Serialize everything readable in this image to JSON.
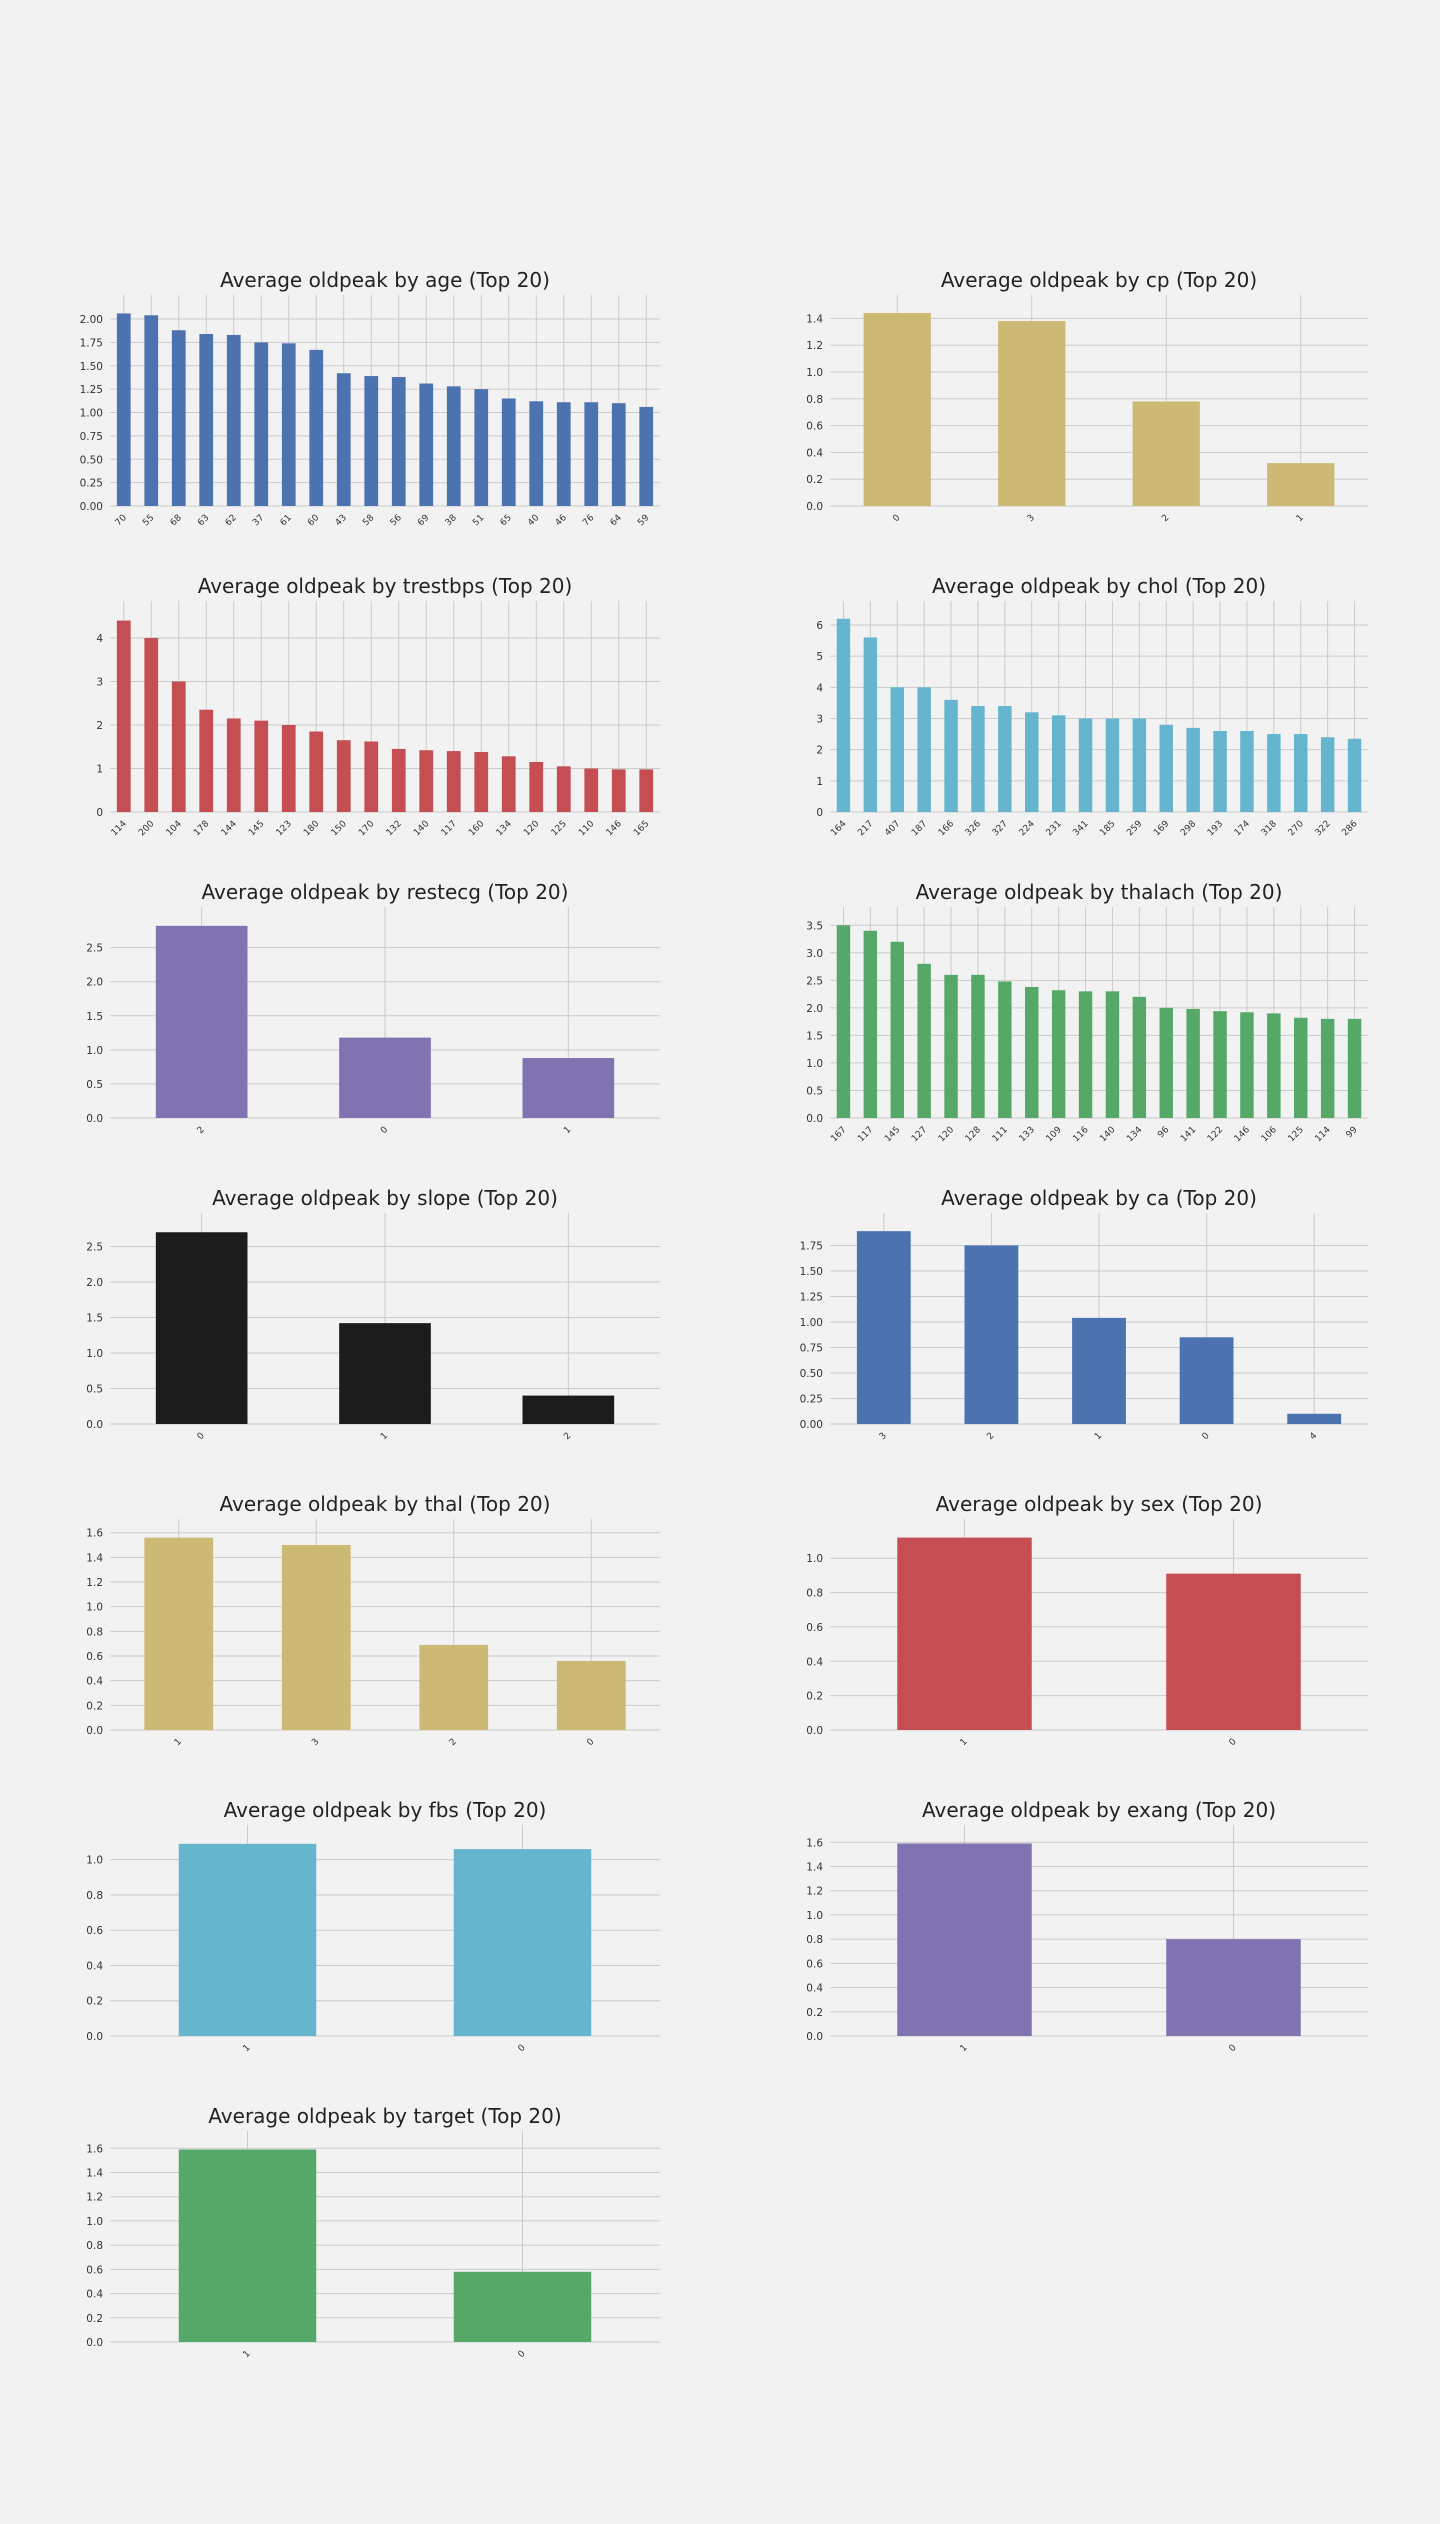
{
  "page": {
    "background": "#f2f2f2",
    "grid_color": "#cbcbcb"
  },
  "chart_data": [
    {
      "type": "bar",
      "title": "Average oldpeak by age (Top 20)",
      "xlabel": "",
      "ylabel": "",
      "color": "#4c72b0",
      "categories": [
        "70",
        "55",
        "68",
        "63",
        "62",
        "37",
        "61",
        "60",
        "43",
        "58",
        "56",
        "69",
        "38",
        "51",
        "65",
        "40",
        "46",
        "76",
        "64",
        "59"
      ],
      "values": [
        2.06,
        2.04,
        1.88,
        1.84,
        1.83,
        1.75,
        1.74,
        1.67,
        1.42,
        1.39,
        1.38,
        1.31,
        1.28,
        1.25,
        1.15,
        1.12,
        1.11,
        1.11,
        1.1,
        1.06
      ],
      "yticks": [
        "0.00",
        "0.25",
        "0.50",
        "0.75",
        "1.00",
        "1.25",
        "1.50",
        "1.75",
        "2.00"
      ],
      "ylim": [
        0,
        2.15
      ],
      "grid": true,
      "legend": "none"
    },
    {
      "type": "bar",
      "title": "Average oldpeak by cp (Top 20)",
      "xlabel": "",
      "ylabel": "",
      "color": "#ccb974",
      "categories": [
        "0",
        "3",
        "2",
        "1"
      ],
      "values": [
        1.44,
        1.38,
        0.78,
        0.32
      ],
      "yticks": [
        "0.0",
        "0.2",
        "0.4",
        "0.6",
        "0.8",
        "1.0",
        "1.2",
        "1.4"
      ],
      "ylim": [
        0,
        1.5
      ],
      "grid": true,
      "legend": "none"
    },
    {
      "type": "bar",
      "title": "Average oldpeak by trestbps (Top 20)",
      "xlabel": "",
      "ylabel": "",
      "color": "#c44e52",
      "categories": [
        "114",
        "200",
        "104",
        "178",
        "144",
        "145",
        "123",
        "180",
        "150",
        "170",
        "132",
        "140",
        "117",
        "160",
        "134",
        "120",
        "125",
        "110",
        "146",
        "165"
      ],
      "values": [
        4.4,
        4.0,
        3.0,
        2.35,
        2.15,
        2.1,
        2.0,
        1.85,
        1.65,
        1.62,
        1.45,
        1.42,
        1.4,
        1.38,
        1.28,
        1.15,
        1.05,
        1.0,
        0.98,
        0.98
      ],
      "yticks": [
        "0",
        "1",
        "2",
        "3",
        "4"
      ],
      "ylim": [
        0,
        4.62
      ],
      "grid": true,
      "legend": "none"
    },
    {
      "type": "bar",
      "title": "Average oldpeak by chol (Top 20)",
      "xlabel": "",
      "ylabel": "",
      "color": "#64b5cd",
      "categories": [
        "164",
        "217",
        "407",
        "187",
        "166",
        "326",
        "327",
        "224",
        "231",
        "341",
        "185",
        "259",
        "169",
        "298",
        "193",
        "174",
        "318",
        "270",
        "322",
        "286"
      ],
      "values": [
        6.2,
        5.6,
        4.0,
        4.0,
        3.6,
        3.4,
        3.4,
        3.2,
        3.1,
        3.0,
        3.0,
        3.0,
        2.8,
        2.7,
        2.6,
        2.6,
        2.5,
        2.5,
        2.4,
        2.35
      ],
      "yticks": [
        "0",
        "1",
        "2",
        "3",
        "4",
        "5",
        "6"
      ],
      "ylim": [
        0,
        6.45
      ],
      "grid": true,
      "legend": "none"
    },
    {
      "type": "bar",
      "title": "Average oldpeak by restecg (Top 20)",
      "xlabel": "",
      "ylabel": "",
      "color": "#8172b2",
      "categories": [
        "2",
        "0",
        "1"
      ],
      "values": [
        2.82,
        1.18,
        0.88
      ],
      "yticks": [
        "0.0",
        "0.5",
        "1.0",
        "1.5",
        "2.0",
        "2.5"
      ],
      "ylim": [
        0,
        2.95
      ],
      "grid": true,
      "legend": "none"
    },
    {
      "type": "bar",
      "title": "Average oldpeak by thalach (Top 20)",
      "xlabel": "",
      "ylabel": "",
      "color": "#55a868",
      "categories": [
        "167",
        "117",
        "145",
        "127",
        "120",
        "128",
        "111",
        "133",
        "109",
        "116",
        "140",
        "134",
        "96",
        "141",
        "122",
        "146",
        "106",
        "125",
        "114",
        "99"
      ],
      "values": [
        3.5,
        3.4,
        3.2,
        2.8,
        2.6,
        2.6,
        2.48,
        2.38,
        2.32,
        2.3,
        2.3,
        2.2,
        2.0,
        1.98,
        1.94,
        1.92,
        1.9,
        1.82,
        1.8,
        1.8
      ],
      "yticks": [
        "0.0",
        "0.5",
        "1.0",
        "1.5",
        "2.0",
        "2.5",
        "3.0",
        "3.5"
      ],
      "ylim": [
        0,
        3.65
      ],
      "grid": true,
      "legend": "none"
    },
    {
      "type": "bar",
      "title": "Average oldpeak by slope (Top 20)",
      "xlabel": "",
      "ylabel": "",
      "color": "#1c1c1c",
      "categories": [
        "0",
        "1",
        "2"
      ],
      "values": [
        2.7,
        1.42,
        0.4
      ],
      "yticks": [
        "0.0",
        "0.5",
        "1.0",
        "1.5",
        "2.0",
        "2.5"
      ],
      "ylim": [
        0,
        2.83
      ],
      "grid": true,
      "legend": "none"
    },
    {
      "type": "bar",
      "title": "Average oldpeak by ca (Top 20)",
      "xlabel": "",
      "ylabel": "",
      "color": "#4c72b0",
      "categories": [
        "3",
        "2",
        "1",
        "0",
        "4"
      ],
      "values": [
        1.89,
        1.75,
        1.04,
        0.85,
        0.1
      ],
      "yticks": [
        "0.00",
        "0.25",
        "0.50",
        "0.75",
        "1.00",
        "1.25",
        "1.50",
        "1.75"
      ],
      "ylim": [
        0,
        1.97
      ],
      "grid": true,
      "legend": "none"
    },
    {
      "type": "bar",
      "title": "Average oldpeak by thal (Top 20)",
      "xlabel": "",
      "ylabel": "",
      "color": "#ccb974",
      "categories": [
        "1",
        "3",
        "2",
        "0"
      ],
      "values": [
        1.56,
        1.5,
        0.69,
        0.56
      ],
      "yticks": [
        "0.0",
        "0.2",
        "0.4",
        "0.6",
        "0.8",
        "1.0",
        "1.2",
        "1.4",
        "1.6"
      ],
      "ylim": [
        0,
        1.63
      ],
      "grid": true,
      "legend": "none"
    },
    {
      "type": "bar",
      "title": "Average oldpeak by sex (Top 20)",
      "xlabel": "",
      "ylabel": "",
      "color": "#c44e52",
      "categories": [
        "1",
        "0"
      ],
      "values": [
        1.12,
        0.91
      ],
      "yticks": [
        "0.0",
        "0.2",
        "0.4",
        "0.6",
        "0.8",
        "1.0"
      ],
      "ylim": [
        0,
        1.17
      ],
      "grid": true,
      "legend": "none"
    },
    {
      "type": "bar",
      "title": "Average oldpeak by fbs (Top 20)",
      "xlabel": "",
      "ylabel": "",
      "color": "#64b5cd",
      "categories": [
        "1",
        "0"
      ],
      "values": [
        1.09,
        1.06
      ],
      "yticks": [
        "0.0",
        "0.2",
        "0.4",
        "0.6",
        "0.8",
        "1.0"
      ],
      "ylim": [
        0,
        1.14
      ],
      "grid": true,
      "legend": "none"
    },
    {
      "type": "bar",
      "title": "Average oldpeak by exang (Top 20)",
      "xlabel": "",
      "ylabel": "",
      "color": "#8172b2",
      "categories": [
        "1",
        "0"
      ],
      "values": [
        1.59,
        0.8
      ],
      "yticks": [
        "0.0",
        "0.2",
        "0.4",
        "0.6",
        "0.8",
        "1.0",
        "1.2",
        "1.4",
        "1.6"
      ],
      "ylim": [
        0,
        1.66
      ],
      "grid": true,
      "legend": "none"
    },
    {
      "type": "bar",
      "title": "Average oldpeak by target (Top 20)",
      "xlabel": "",
      "ylabel": "",
      "color": "#55a868",
      "categories": [
        "1",
        "0"
      ],
      "values": [
        1.59,
        0.58
      ],
      "yticks": [
        "0.0",
        "0.2",
        "0.4",
        "0.6",
        "0.8",
        "1.0",
        "1.2",
        "1.4",
        "1.6"
      ],
      "ylim": [
        0,
        1.66
      ],
      "grid": true,
      "legend": "none"
    }
  ]
}
